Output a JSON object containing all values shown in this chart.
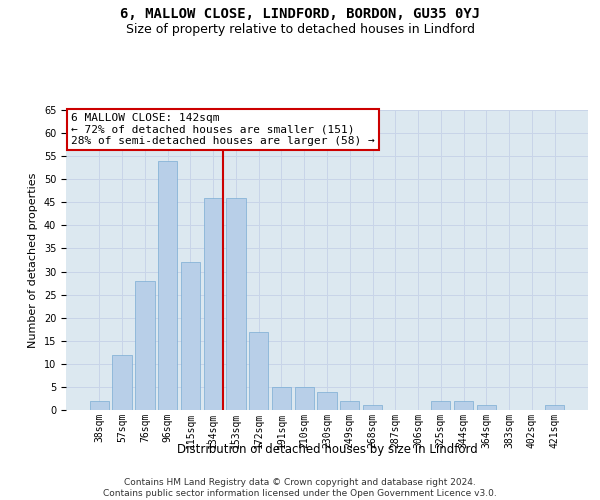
{
  "title": "6, MALLOW CLOSE, LINDFORD, BORDON, GU35 0YJ",
  "subtitle": "Size of property relative to detached houses in Lindford",
  "xlabel": "Distribution of detached houses by size in Lindford",
  "ylabel": "Number of detached properties",
  "footer_line1": "Contains HM Land Registry data © Crown copyright and database right 2024.",
  "footer_line2": "Contains public sector information licensed under the Open Government Licence v3.0.",
  "bins": [
    "38sqm",
    "57sqm",
    "76sqm",
    "96sqm",
    "115sqm",
    "134sqm",
    "153sqm",
    "172sqm",
    "191sqm",
    "210sqm",
    "230sqm",
    "249sqm",
    "268sqm",
    "287sqm",
    "306sqm",
    "325sqm",
    "344sqm",
    "364sqm",
    "383sqm",
    "402sqm",
    "421sqm"
  ],
  "values": [
    2,
    12,
    28,
    54,
    32,
    46,
    46,
    17,
    5,
    5,
    4,
    2,
    1,
    0,
    0,
    2,
    2,
    1,
    0,
    0,
    1
  ],
  "bar_color": "#b8cfe8",
  "bar_edge_color": "#7aadd4",
  "vline_color": "#cc0000",
  "annotation_text": "6 MALLOW CLOSE: 142sqm\n← 72% of detached houses are smaller (151)\n28% of semi-detached houses are larger (58) →",
  "annotation_box_color": "#ffffff",
  "annotation_box_edge": "#cc0000",
  "ylim": [
    0,
    65
  ],
  "yticks": [
    0,
    5,
    10,
    15,
    20,
    25,
    30,
    35,
    40,
    45,
    50,
    55,
    60,
    65
  ],
  "grid_color": "#c8d4e8",
  "plot_bg_color": "#dce8f0",
  "title_fontsize": 10,
  "subtitle_fontsize": 9,
  "xlabel_fontsize": 8.5,
  "ylabel_fontsize": 8,
  "tick_fontsize": 7,
  "annotation_fontsize": 8,
  "footer_fontsize": 6.5
}
